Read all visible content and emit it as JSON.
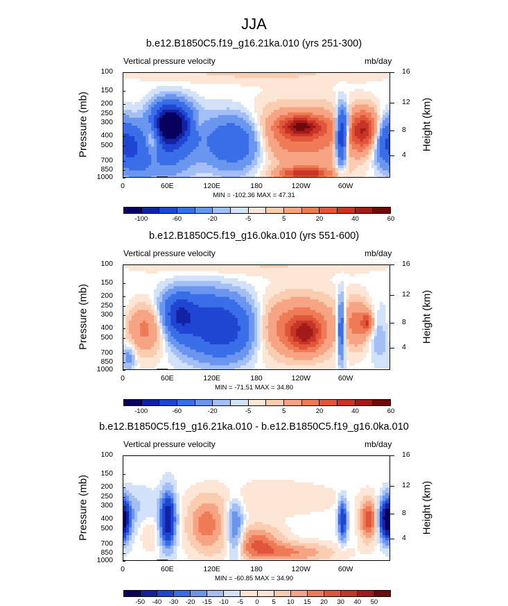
{
  "main_title": "JJA",
  "colors": {
    "c0": "#09005e",
    "c1": "#1321a3",
    "c2": "#1e46d3",
    "c3": "#3a6ee8",
    "c4": "#6b96f0",
    "c5": "#a3bff5",
    "c6": "#d2e2fa",
    "w0": "#fde6d6",
    "w1": "#fbcdb0",
    "w2": "#f6a483",
    "w3": "#ef7a56",
    "w4": "#e0553b",
    "w5": "#c83425",
    "w6": "#a21a1a",
    "w7": "#6e0a0a"
  },
  "chart_data": [
    {
      "type": "contour",
      "title": "b.e12.B1850C5.f19_g16.21ka.010 (yrs 251-300)",
      "left_label": "Vertical pressure velocity",
      "right_label": "mb/day",
      "ylabel": "Pressure (mb)",
      "ylabel_right": "Height (km)",
      "yticks": [
        "100",
        "150",
        "200",
        "250",
        "300",
        "400",
        "500",
        "700",
        "850",
        "1000"
      ],
      "yticks_right": [
        "16",
        "12",
        "8",
        "4"
      ],
      "xticks": [
        "0",
        "60E",
        "120E",
        "180",
        "120W",
        "60W"
      ],
      "minmax": "MIN = -102.36  MAX =  47.31",
      "colorbar_labels": [
        "-100",
        "-60",
        "-20",
        "-5",
        "5",
        "20",
        "40",
        "60"
      ],
      "blobs": [
        {
          "lon": 62,
          "p": 300,
          "w": 18,
          "h": 0.55,
          "v": -100
        },
        {
          "lon": 55,
          "p": 450,
          "w": 28,
          "h": 0.9,
          "v": -40
        },
        {
          "lon": 150,
          "p": 450,
          "w": 28,
          "h": 0.8,
          "v": -45
        },
        {
          "lon": 20,
          "p": 550,
          "w": 14,
          "h": 0.8,
          "v": -20
        },
        {
          "lon": 32,
          "p": 350,
          "w": 18,
          "h": 0.7,
          "v": 22
        },
        {
          "lon": 40,
          "p": 400,
          "w": 8,
          "h": 0.6,
          "v": 35
        },
        {
          "lon": 100,
          "p": 300,
          "w": 6,
          "h": 0.3,
          "v": 10
        },
        {
          "lon": 235,
          "p": 400,
          "w": 60,
          "h": 0.9,
          "v": 28
        },
        {
          "lon": 240,
          "p": 320,
          "w": 20,
          "h": 0.3,
          "v": 40
        },
        {
          "lon": 245,
          "p": 900,
          "w": 25,
          "h": 0.2,
          "v": 45
        },
        {
          "lon": 293,
          "p": 400,
          "w": 5,
          "h": 0.8,
          "v": -70
        },
        {
          "lon": 300,
          "p": 300,
          "w": 4,
          "h": 0.5,
          "v": -20
        },
        {
          "lon": 315,
          "p": 350,
          "w": 12,
          "h": 0.6,
          "v": 15
        },
        {
          "lon": 328,
          "p": 350,
          "w": 12,
          "h": 0.6,
          "v": 35
        },
        {
          "lon": 358,
          "p": 450,
          "w": 15,
          "h": 0.7,
          "v": -45
        },
        {
          "lon": 180,
          "p": 100,
          "w": 120,
          "h": 0.3,
          "v": 6
        }
      ]
    },
    {
      "type": "contour",
      "title": "b.e12.B1850C5.f19_g16.0ka.010 (yrs 551-600)",
      "left_label": "Vertical pressure velocity",
      "right_label": "mb/day",
      "ylabel": "Pressure (mb)",
      "ylabel_right": "Height (km)",
      "yticks": [
        "100",
        "150",
        "200",
        "250",
        "300",
        "400",
        "500",
        "700",
        "850",
        "1000"
      ],
      "yticks_right": [
        "16",
        "12",
        "8",
        "4"
      ],
      "xticks": [
        "0",
        "60E",
        "120E",
        "180",
        "120W",
        "60W"
      ],
      "minmax": "MIN = -71.51  MAX =  34.80",
      "colorbar_labels": [
        "-100",
        "-60",
        "-20",
        "-5",
        "5",
        "20",
        "40",
        "60"
      ],
      "blobs": [
        {
          "lon": 75,
          "p": 300,
          "w": 14,
          "h": 0.6,
          "v": -45
        },
        {
          "lon": 110,
          "p": 380,
          "w": 30,
          "h": 0.9,
          "v": -35
        },
        {
          "lon": 145,
          "p": 420,
          "w": 25,
          "h": 0.8,
          "v": -35
        },
        {
          "lon": 95,
          "p": 250,
          "w": 60,
          "h": 0.6,
          "v": -10
        },
        {
          "lon": 30,
          "p": 380,
          "w": 18,
          "h": 0.8,
          "v": 25
        },
        {
          "lon": 8,
          "p": 750,
          "w": 6,
          "h": 0.4,
          "v": -15
        },
        {
          "lon": 233,
          "p": 380,
          "w": 40,
          "h": 0.9,
          "v": 28
        },
        {
          "lon": 245,
          "p": 450,
          "w": 15,
          "h": 0.5,
          "v": 34
        },
        {
          "lon": 293,
          "p": 400,
          "w": 4,
          "h": 0.9,
          "v": -40
        },
        {
          "lon": 315,
          "p": 350,
          "w": 12,
          "h": 0.7,
          "v": 22
        },
        {
          "lon": 328,
          "p": 350,
          "w": 5,
          "h": 0.3,
          "v": 30
        },
        {
          "lon": 345,
          "p": 500,
          "w": 10,
          "h": 0.7,
          "v": -10
        },
        {
          "lon": 180,
          "p": 100,
          "w": 120,
          "h": 0.3,
          "v": 5
        }
      ]
    },
    {
      "type": "contour",
      "title": "b.e12.B1850C5.f19_g16.21ka.010 - b.e12.B1850C5.f19_g16.0ka.010",
      "left_label": "Vertical pressure velocity",
      "right_label": "mb/day",
      "ylabel": "Pressure (mb)",
      "ylabel_right": "Height (km)",
      "yticks": [
        "100",
        "150",
        "200",
        "250",
        "300",
        "400",
        "500",
        "700",
        "850",
        "1000"
      ],
      "yticks_right": [
        "16",
        "12",
        "8",
        "4"
      ],
      "xticks": [
        "0",
        "60E",
        "120E",
        "180",
        "120W",
        "60W"
      ],
      "minmax": "MIN = -60.85  MAX =  34.90",
      "colorbar_labels": [
        "-50",
        "-40",
        "-30",
        "-20",
        "-15",
        "-10",
        "-5",
        "0",
        "5",
        "10",
        "15",
        "20",
        "30",
        "40",
        "50"
      ],
      "blobs": [
        {
          "lon": 60,
          "p": 400,
          "w": 7,
          "h": 0.8,
          "v": -40
        },
        {
          "lon": 150,
          "p": 500,
          "w": 8,
          "h": 0.9,
          "v": -20
        },
        {
          "lon": 20,
          "p": 300,
          "w": 20,
          "h": 0.6,
          "v": -5
        },
        {
          "lon": 112,
          "p": 450,
          "w": 18,
          "h": 0.8,
          "v": 18
        },
        {
          "lon": 180,
          "p": 650,
          "w": 22,
          "h": 0.5,
          "v": 18
        },
        {
          "lon": 225,
          "p": 820,
          "w": 40,
          "h": 0.3,
          "v": 15
        },
        {
          "lon": 200,
          "p": 250,
          "w": 60,
          "h": 0.5,
          "v": 5
        },
        {
          "lon": 295,
          "p": 400,
          "w": 4,
          "h": 0.6,
          "v": -30
        },
        {
          "lon": 330,
          "p": 400,
          "w": 8,
          "h": 0.6,
          "v": 25
        },
        {
          "lon": 357,
          "p": 400,
          "w": 8,
          "h": 0.6,
          "v": -55
        },
        {
          "lon": 35,
          "p": 550,
          "w": 8,
          "h": 0.5,
          "v": 5
        }
      ]
    }
  ]
}
